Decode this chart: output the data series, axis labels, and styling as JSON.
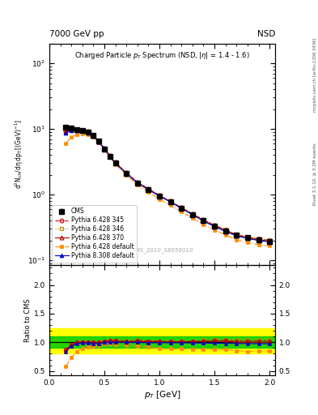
{
  "title_top": "7000 GeV pp",
  "title_top_right": "NSD",
  "plot_title": "Charged Particle p_{T} Spectrum (NSD, |\\eta| = 1.4 - 1.6)",
  "watermark": "CMS_2010_S8656010",
  "rivet_label": "Rivet 3.1.10, ≥ 3.2M events",
  "xlabel": "p_{T} [GeV]",
  "ylabel_main": "d²N_{ch}/dη dp_{T} [(GeV)⁻¹]",
  "ylabel_ratio": "Ratio to CMS",
  "xlim": [
    0.0,
    2.05
  ],
  "ylim_main": [
    0.085,
    200
  ],
  "ylim_ratio": [
    0.42,
    2.35
  ],
  "cms_pt": [
    0.15,
    0.2,
    0.25,
    0.3,
    0.35,
    0.4,
    0.45,
    0.5,
    0.55,
    0.6,
    0.7,
    0.8,
    0.9,
    1.0,
    1.1,
    1.2,
    1.3,
    1.4,
    1.5,
    1.6,
    1.7,
    1.8,
    1.9,
    2.0
  ],
  "cms_val": [
    10.5,
    10.2,
    9.8,
    9.5,
    9.0,
    8.0,
    6.5,
    5.0,
    3.8,
    3.0,
    2.1,
    1.5,
    1.2,
    0.95,
    0.78,
    0.62,
    0.5,
    0.4,
    0.33,
    0.28,
    0.24,
    0.22,
    0.205,
    0.195
  ],
  "cms_err": [
    0.5,
    0.5,
    0.5,
    0.5,
    0.5,
    0.4,
    0.3,
    0.25,
    0.2,
    0.15,
    0.1,
    0.08,
    0.06,
    0.05,
    0.04,
    0.03,
    0.025,
    0.02,
    0.018,
    0.015,
    0.013,
    0.012,
    0.011,
    0.01
  ],
  "p345_pt": [
    0.15,
    0.2,
    0.25,
    0.3,
    0.35,
    0.4,
    0.45,
    0.5,
    0.55,
    0.6,
    0.7,
    0.8,
    0.9,
    1.0,
    1.1,
    1.2,
    1.3,
    1.4,
    1.5,
    1.6,
    1.7,
    1.8,
    1.9,
    2.0
  ],
  "p345_val": [
    9.2,
    9.8,
    9.8,
    9.6,
    9.1,
    8.0,
    6.5,
    5.1,
    3.9,
    3.1,
    2.15,
    1.55,
    1.23,
    0.97,
    0.79,
    0.63,
    0.51,
    0.41,
    0.34,
    0.29,
    0.245,
    0.225,
    0.21,
    0.2
  ],
  "p346_pt": [
    0.15,
    0.2,
    0.25,
    0.3,
    0.35,
    0.4,
    0.45,
    0.5,
    0.55,
    0.6,
    0.7,
    0.8,
    0.9,
    1.0,
    1.1,
    1.2,
    1.3,
    1.4,
    1.5,
    1.6,
    1.7,
    1.8,
    1.9,
    2.0
  ],
  "p346_val": [
    9.2,
    9.8,
    9.8,
    9.6,
    9.1,
    8.0,
    6.5,
    5.1,
    3.9,
    3.1,
    2.15,
    1.55,
    1.23,
    0.97,
    0.79,
    0.63,
    0.51,
    0.42,
    0.345,
    0.295,
    0.25,
    0.23,
    0.215,
    0.205
  ],
  "p370_pt": [
    0.15,
    0.2,
    0.25,
    0.3,
    0.35,
    0.4,
    0.45,
    0.5,
    0.55,
    0.6,
    0.7,
    0.8,
    0.9,
    1.0,
    1.1,
    1.2,
    1.3,
    1.4,
    1.5,
    1.6,
    1.7,
    1.8,
    1.9,
    2.0
  ],
  "p370_val": [
    9.0,
    9.7,
    9.7,
    9.5,
    9.0,
    7.9,
    6.4,
    5.05,
    3.85,
    3.05,
    2.12,
    1.52,
    1.21,
    0.96,
    0.785,
    0.625,
    0.505,
    0.405,
    0.335,
    0.285,
    0.24,
    0.22,
    0.205,
    0.195
  ],
  "pdef_pt": [
    0.15,
    0.2,
    0.25,
    0.3,
    0.35,
    0.4,
    0.45,
    0.5,
    0.55,
    0.6,
    0.7,
    0.8,
    0.9,
    1.0,
    1.1,
    1.2,
    1.3,
    1.4,
    1.5,
    1.6,
    1.7,
    1.8,
    1.9,
    2.0
  ],
  "pdef_val": [
    6.1,
    7.5,
    8.2,
    8.5,
    8.3,
    7.5,
    6.2,
    4.9,
    3.7,
    2.9,
    2.0,
    1.4,
    1.1,
    0.85,
    0.69,
    0.55,
    0.44,
    0.35,
    0.29,
    0.245,
    0.205,
    0.185,
    0.173,
    0.165
  ],
  "p8def_pt": [
    0.15,
    0.2,
    0.25,
    0.3,
    0.35,
    0.4,
    0.45,
    0.5,
    0.55,
    0.6,
    0.7,
    0.8,
    0.9,
    1.0,
    1.1,
    1.2,
    1.3,
    1.4,
    1.5,
    1.6,
    1.7,
    1.8,
    1.9,
    2.0
  ],
  "p8def_val": [
    8.8,
    9.5,
    9.6,
    9.4,
    8.9,
    7.85,
    6.35,
    5.0,
    3.8,
    3.0,
    2.1,
    1.5,
    1.19,
    0.945,
    0.775,
    0.615,
    0.495,
    0.395,
    0.325,
    0.275,
    0.235,
    0.215,
    0.2,
    0.19
  ],
  "band_green_lo": 0.9,
  "band_green_hi": 1.1,
  "band_yellow_lo": 0.8,
  "band_yellow_hi": 1.25,
  "color_cms": "#000000",
  "color_345": "#cc0000",
  "color_346": "#bb8800",
  "color_370": "#aa0000",
  "color_pdef": "#ff8c00",
  "color_p8def": "#0000cc",
  "bg_color": "#ffffff"
}
